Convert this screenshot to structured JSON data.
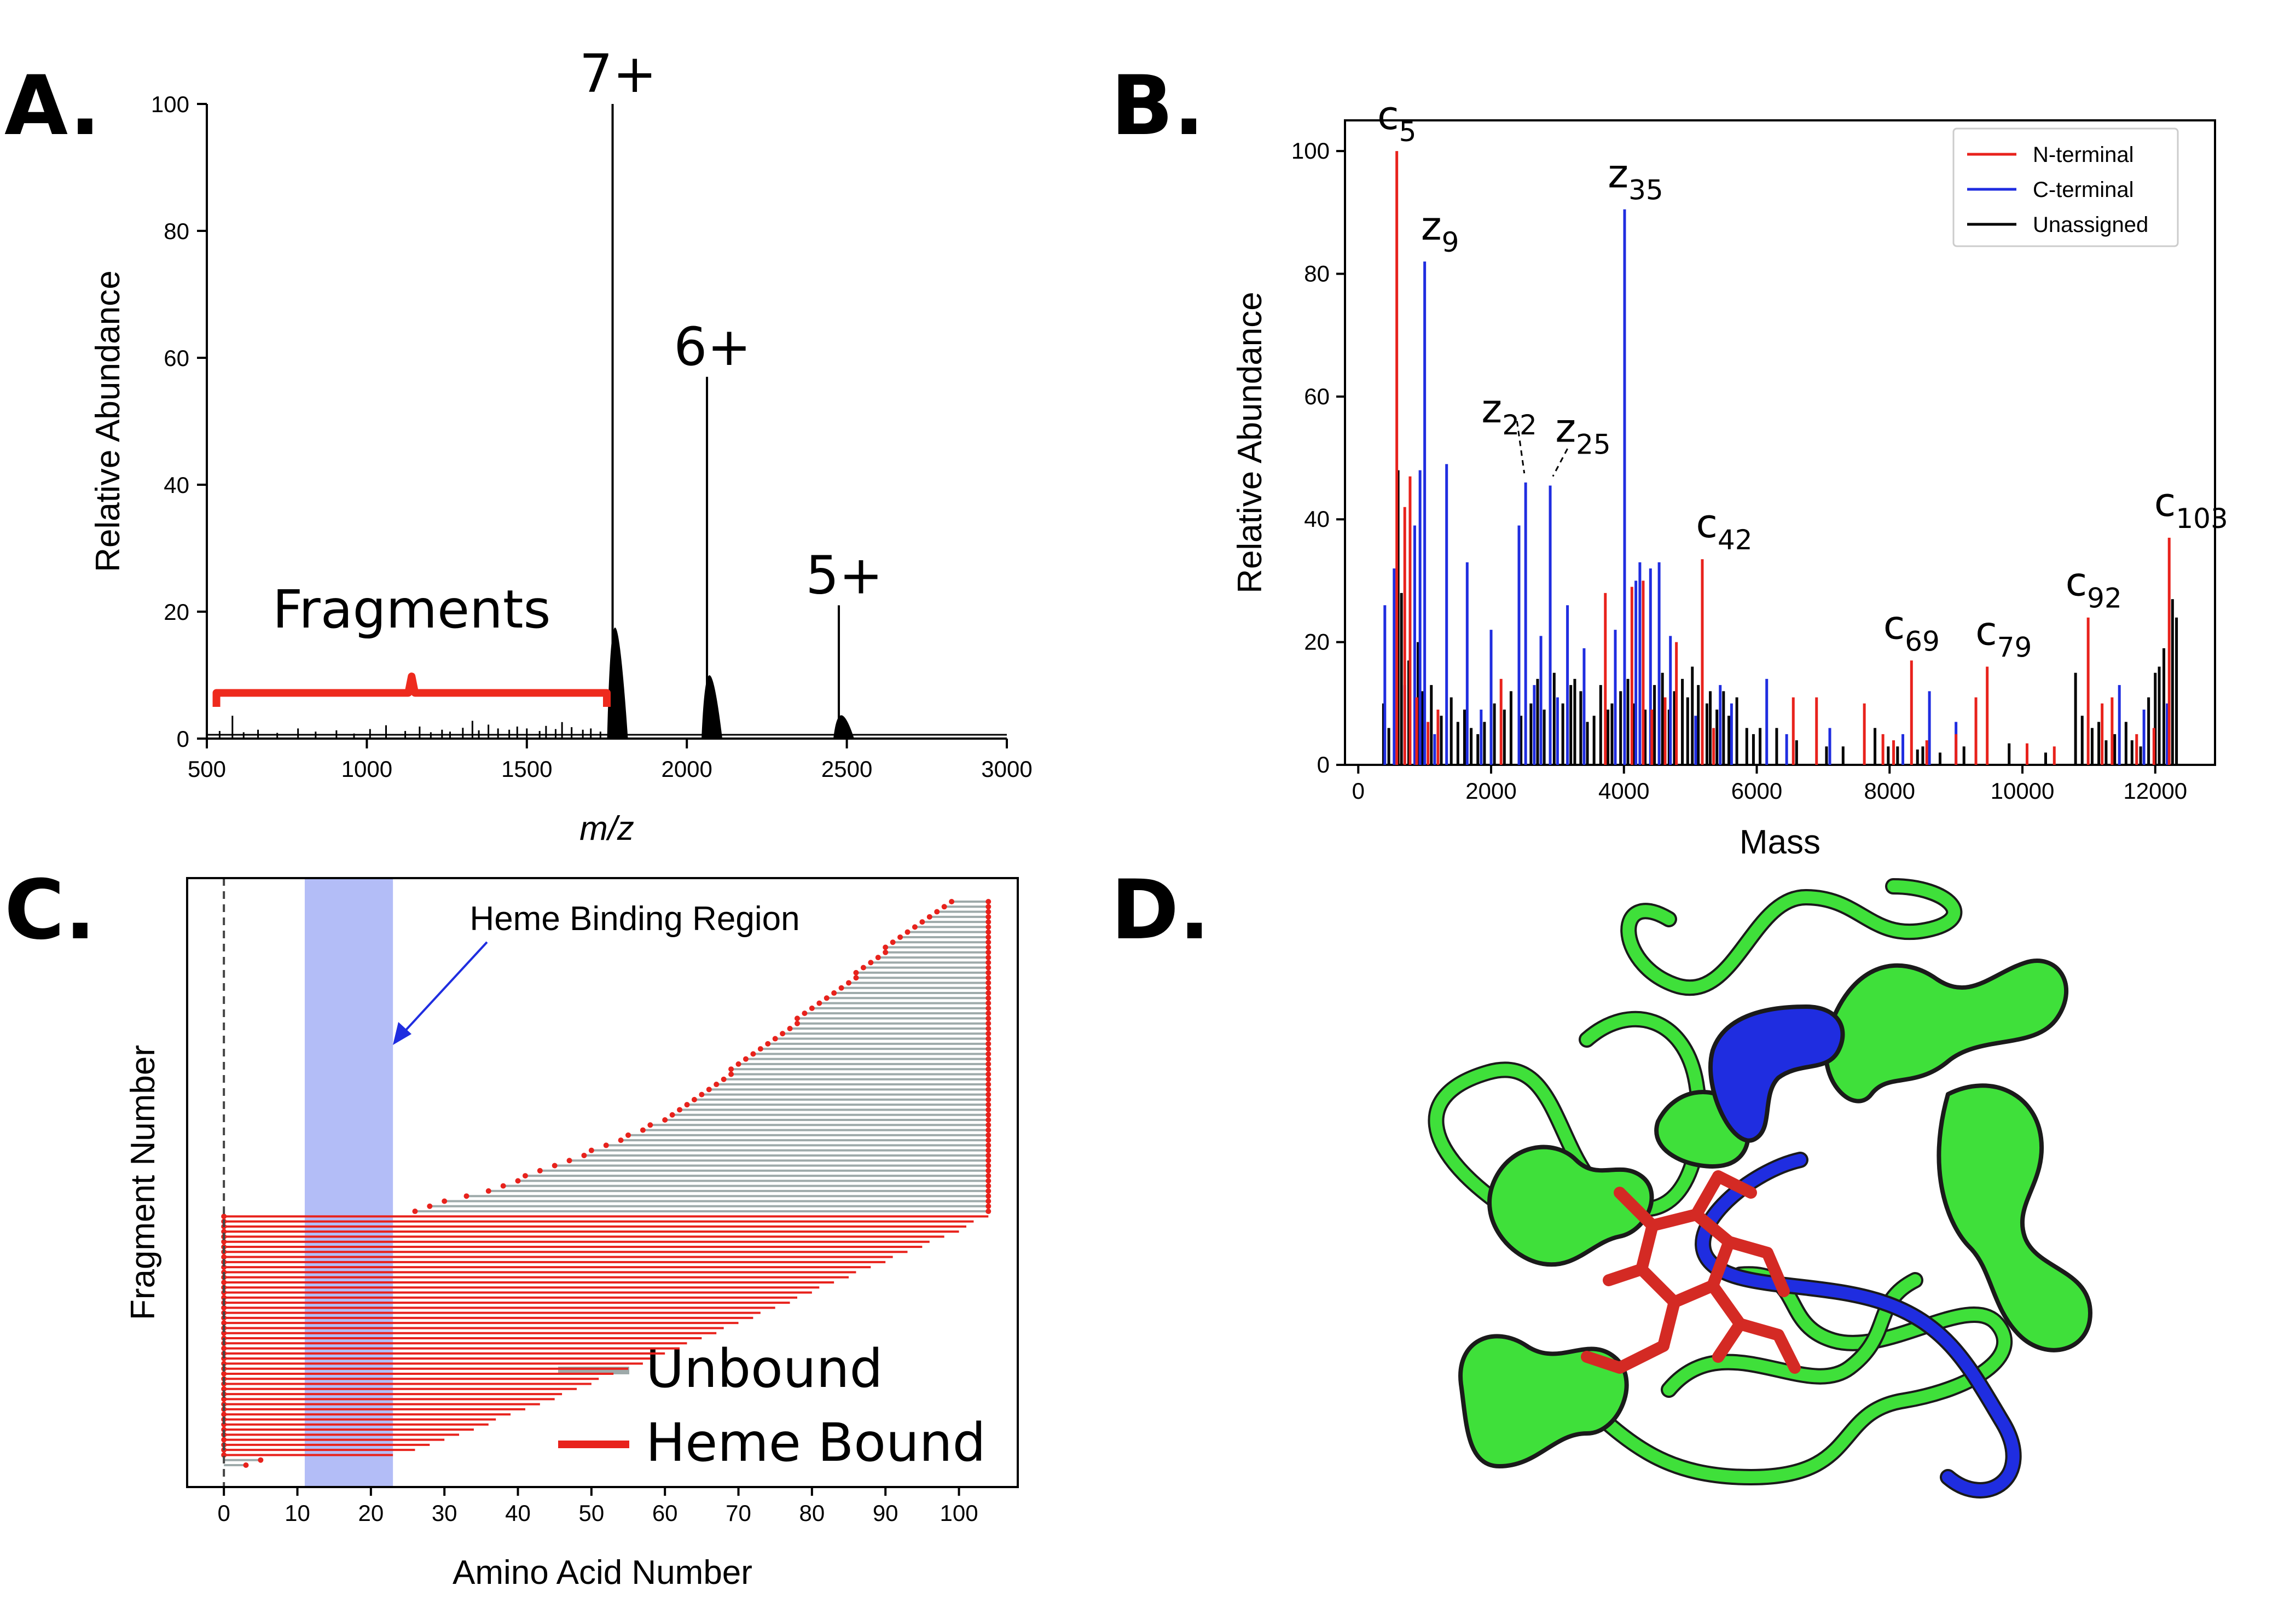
{
  "panels": {
    "a": "A.",
    "b": "B.",
    "c": "C.",
    "d": "D."
  },
  "chart_data": [
    {
      "type": "line",
      "panel": "A",
      "title": "",
      "xlabel": "m/z",
      "ylabel": "Relative Abundance",
      "xlim": [
        500,
        3000
      ],
      "ylim": [
        0,
        100
      ],
      "xticks": [
        500,
        1000,
        1500,
        2000,
        2500,
        3000
      ],
      "yticks": [
        0,
        20,
        40,
        60,
        80,
        100
      ],
      "peaks": [
        {
          "x": 1768,
          "y": 100,
          "label": "7+"
        },
        {
          "x": 2063,
          "y": 57,
          "label": "6+"
        },
        {
          "x": 2475,
          "y": 21,
          "label": "5+"
        }
      ],
      "fragment_label": "Fragments",
      "fragment_range": [
        530,
        1750
      ],
      "noise_peaks": [
        [
          540,
          1.2
        ],
        [
          580,
          3.6
        ],
        [
          615,
          1.0
        ],
        [
          660,
          1.4
        ],
        [
          720,
          0.9
        ],
        [
          785,
          1.6
        ],
        [
          840,
          1.1
        ],
        [
          905,
          1.3
        ],
        [
          960,
          0.8
        ],
        [
          1010,
          1.5
        ],
        [
          1060,
          2.1
        ],
        [
          1120,
          1.2
        ],
        [
          1165,
          1.9
        ],
        [
          1200,
          1.0
        ],
        [
          1235,
          1.4
        ],
        [
          1260,
          1.1
        ],
        [
          1300,
          1.7
        ],
        [
          1330,
          2.8
        ],
        [
          1350,
          1.3
        ],
        [
          1380,
          2.2
        ],
        [
          1410,
          1.6
        ],
        [
          1445,
          1.4
        ],
        [
          1470,
          1.9
        ],
        [
          1500,
          1.6
        ],
        [
          1540,
          1.2
        ],
        [
          1560,
          2.0
        ],
        [
          1590,
          1.5
        ],
        [
          1610,
          2.6
        ],
        [
          1640,
          1.8
        ],
        [
          1675,
          1.4
        ],
        [
          1700,
          1.6
        ],
        [
          1730,
          1.1
        ]
      ]
    },
    {
      "type": "bar",
      "panel": "B",
      "xlabel": "Mass",
      "ylabel": "Relative Abundance",
      "xlim": [
        -200,
        12900
      ],
      "ylim": [
        0,
        105
      ],
      "xticks": [
        0,
        2000,
        4000,
        6000,
        8000,
        10000,
        12000
      ],
      "yticks": [
        0,
        20,
        40,
        60,
        80,
        100
      ],
      "legend": {
        "placement": "top-right",
        "entries": [
          "N-terminal",
          "C-terminal",
          "Unassigned"
        ]
      },
      "colors": {
        "N-terminal": "#e8221c",
        "C-terminal": "#1f2de0",
        "Unassigned": "#000000"
      },
      "annotations": [
        {
          "ion": "c",
          "n": "5",
          "mass": 580,
          "y": 100
        },
        {
          "ion": "z",
          "n": "9",
          "mass": 1000,
          "y": 82
        },
        {
          "ion": "z",
          "n": "22",
          "mass": 2520,
          "y": 46
        },
        {
          "ion": "z",
          "n": "25",
          "mass": 2890,
          "y": 45.5
        },
        {
          "ion": "z",
          "n": "35",
          "mass": 4010,
          "y": 90.5
        },
        {
          "ion": "c",
          "n": "42",
          "mass": 5180,
          "y": 33.5
        },
        {
          "ion": "c",
          "n": "69",
          "mass": 8330,
          "y": 17
        },
        {
          "ion": "c",
          "n": "79",
          "mass": 9470,
          "y": 16
        },
        {
          "ion": "c",
          "n": "92",
          "mass": 10990,
          "y": 24
        },
        {
          "ion": "c",
          "n": "103",
          "mass": 12210,
          "y": 37
        }
      ],
      "series": [
        {
          "name": "N-terminal",
          "points": [
            [
              580,
              100
            ],
            [
              700,
              42
            ],
            [
              780,
              47
            ],
            [
              880,
              11
            ],
            [
              1050,
              7
            ],
            [
              1200,
              9
            ],
            [
              2150,
              14
            ],
            [
              3720,
              28
            ],
            [
              4120,
              29
            ],
            [
              4290,
              30
            ],
            [
              4420,
              9
            ],
            [
              4620,
              11
            ],
            [
              4790,
              20
            ],
            [
              5180,
              33.5
            ],
            [
              5350,
              6
            ],
            [
              6550,
              11
            ],
            [
              6900,
              11
            ],
            [
              7620,
              10
            ],
            [
              7900,
              5
            ],
            [
              8060,
              4
            ],
            [
              8330,
              17
            ],
            [
              8560,
              4
            ],
            [
              9000,
              5
            ],
            [
              9300,
              11
            ],
            [
              9470,
              16
            ],
            [
              10070,
              3.5
            ],
            [
              10480,
              3
            ],
            [
              10990,
              24
            ],
            [
              11200,
              10
            ],
            [
              11350,
              11
            ],
            [
              11720,
              5
            ],
            [
              11980,
              6
            ],
            [
              12210,
              37
            ]
          ]
        },
        {
          "name": "C-terminal",
          "points": [
            [
              400,
              26
            ],
            [
              540,
              32
            ],
            [
              700,
              13
            ],
            [
              850,
              39
            ],
            [
              930,
              48
            ],
            [
              1000,
              82
            ],
            [
              1150,
              5
            ],
            [
              1330,
              49
            ],
            [
              1640,
              33
            ],
            [
              1850,
              9
            ],
            [
              2000,
              22
            ],
            [
              2420,
              39
            ],
            [
              2520,
              46
            ],
            [
              2650,
              13
            ],
            [
              2750,
              21
            ],
            [
              2890,
              45.5
            ],
            [
              3000,
              11
            ],
            [
              3150,
              26
            ],
            [
              3400,
              19
            ],
            [
              3870,
              22
            ],
            [
              4010,
              90.5
            ],
            [
              4180,
              30
            ],
            [
              4240,
              33
            ],
            [
              4400,
              32
            ],
            [
              4530,
              33
            ],
            [
              4700,
              21
            ],
            [
              5080,
              8
            ],
            [
              5450,
              13
            ],
            [
              5620,
              10
            ],
            [
              6150,
              14
            ],
            [
              6450,
              5
            ],
            [
              7100,
              6
            ],
            [
              8200,
              5
            ],
            [
              8600,
              12
            ],
            [
              9000,
              7
            ],
            [
              11460,
              13
            ],
            [
              11830,
              9
            ],
            [
              12180,
              10
            ]
          ]
        },
        {
          "name": "Unassigned",
          "points": [
            [
              380,
              10
            ],
            [
              460,
              6
            ],
            [
              600,
              48
            ],
            [
              650,
              28
            ],
            [
              760,
              17
            ],
            [
              900,
              20
            ],
            [
              970,
              12
            ],
            [
              1100,
              13
            ],
            [
              1250,
              8
            ],
            [
              1400,
              11
            ],
            [
              1500,
              7
            ],
            [
              1600,
              9
            ],
            [
              1700,
              6
            ],
            [
              1800,
              5
            ],
            [
              1900,
              7
            ],
            [
              2050,
              10
            ],
            [
              2200,
              9
            ],
            [
              2300,
              12
            ],
            [
              2450,
              8
            ],
            [
              2600,
              10
            ],
            [
              2700,
              14
            ],
            [
              2800,
              9
            ],
            [
              2950,
              15
            ],
            [
              3080,
              10
            ],
            [
              3200,
              13
            ],
            [
              3260,
              14
            ],
            [
              3350,
              12
            ],
            [
              3450,
              7
            ],
            [
              3550,
              8
            ],
            [
              3650,
              13
            ],
            [
              3760,
              9
            ],
            [
              3820,
              10
            ],
            [
              3950,
              12
            ],
            [
              4060,
              14
            ],
            [
              4150,
              10
            ],
            [
              4320,
              9
            ],
            [
              4460,
              13
            ],
            [
              4580,
              15
            ],
            [
              4680,
              9
            ],
            [
              4760,
              12
            ],
            [
              4880,
              14
            ],
            [
              4960,
              11
            ],
            [
              5030,
              16
            ],
            [
              5120,
              13
            ],
            [
              5250,
              10
            ],
            [
              5300,
              12
            ],
            [
              5400,
              9
            ],
            [
              5500,
              12
            ],
            [
              5580,
              8
            ],
            [
              5700,
              11
            ],
            [
              5850,
              6
            ],
            [
              5950,
              5
            ],
            [
              6050,
              6
            ],
            [
              6300,
              6
            ],
            [
              6600,
              4
            ],
            [
              7050,
              3
            ],
            [
              7300,
              3
            ],
            [
              7780,
              6
            ],
            [
              7980,
              3
            ],
            [
              8120,
              3
            ],
            [
              8420,
              2.5
            ],
            [
              8500,
              3
            ],
            [
              8760,
              2
            ],
            [
              9120,
              3
            ],
            [
              9800,
              3.5
            ],
            [
              10350,
              2
            ],
            [
              10800,
              15
            ],
            [
              10900,
              8
            ],
            [
              11050,
              6
            ],
            [
              11150,
              7
            ],
            [
              11260,
              4
            ],
            [
              11390,
              5
            ],
            [
              11560,
              7
            ],
            [
              11650,
              4
            ],
            [
              11780,
              3
            ],
            [
              11900,
              11
            ],
            [
              12000,
              15
            ],
            [
              12060,
              16
            ],
            [
              12130,
              19
            ],
            [
              12260,
              27
            ],
            [
              12320,
              24
            ]
          ]
        }
      ]
    },
    {
      "type": "bar",
      "panel": "C",
      "xlabel": "Amino Acid Number",
      "ylabel": "Fragment Number",
      "xlim": [
        -5,
        108
      ],
      "xticks": [
        0,
        10,
        20,
        30,
        40,
        50,
        60,
        70,
        80,
        90,
        100
      ],
      "highlight_region": {
        "label": "Heme Binding Region",
        "from": 11,
        "to": 23,
        "color": "#b3bdf7"
      },
      "legend": {
        "placement": "bottom-right",
        "entries": [
          "Unbound",
          "Heme Bound"
        ]
      },
      "colors": {
        "Unbound": "#9eaaaa",
        "Heme Bound": "#e8221c"
      },
      "fragments": {
        "unbound_n_terminal_ends": [
          5,
          3
        ],
        "heme_bound_n_terminal_ends": [
          23,
          26,
          28,
          30,
          32,
          34,
          36,
          37,
          39,
          41,
          43,
          45,
          46,
          48,
          50,
          51,
          53,
          55,
          57,
          58,
          60,
          62,
          63,
          65,
          67,
          68,
          70,
          72,
          73,
          75,
          77,
          78,
          80,
          81,
          83,
          85,
          86,
          88,
          90,
          91,
          93,
          95,
          96,
          98,
          100,
          101,
          102,
          104
        ],
        "unbound_c_terminal_starts": [
          26,
          28,
          30,
          33,
          36,
          38,
          40,
          41,
          43,
          45,
          47,
          49,
          50,
          52,
          54,
          55,
          57,
          58,
          60,
          61,
          62,
          63,
          64,
          65,
          66,
          67,
          68,
          69,
          69,
          70,
          71,
          72,
          73,
          74,
          75,
          76,
          77,
          78,
          78,
          79,
          80,
          81,
          82,
          83,
          84,
          85,
          86,
          86,
          87,
          88,
          89,
          90,
          90,
          91,
          92,
          93,
          94,
          95,
          96,
          97,
          98,
          99
        ]
      }
    }
  ],
  "legend_c": {
    "unbound": "Unbound",
    "bound": "Heme Bound"
  }
}
